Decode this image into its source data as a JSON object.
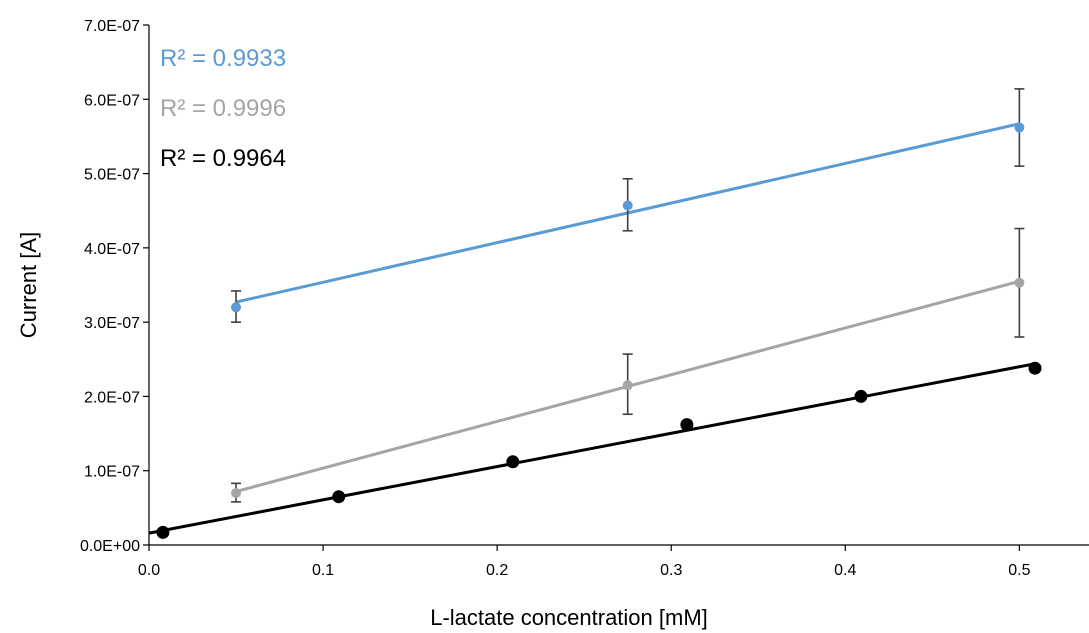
{
  "chart_data": {
    "type": "scatter",
    "xlabel": "L-lactate concentration [mM]",
    "ylabel": "Current [A]",
    "xlim": [
      0,
      0.54
    ],
    "ylim": [
      0,
      7e-07
    ],
    "x_ticks": [
      0,
      0.1,
      0.2,
      0.3,
      0.4,
      0.5
    ],
    "x_tick_labels": [
      "0.0",
      "0.1",
      "0.2",
      "0.3",
      "0.4",
      "0.5"
    ],
    "y_ticks": [
      0,
      1e-07,
      2e-07,
      3e-07,
      4e-07,
      5e-07,
      6e-07,
      7e-07
    ],
    "y_tick_labels": [
      "0.0E+00",
      "1.0E-07",
      "2.0E-07",
      "3.0E-07",
      "4.0E-07",
      "5.0E-07",
      "6.0E-07",
      "7.0E-07"
    ],
    "grid": false,
    "series": [
      {
        "color": "#5B9BD5",
        "r2_label": "R² = 0.9933",
        "marker_size": "small",
        "x": [
          0.05,
          0.275,
          0.5
        ],
        "y": [
          3.2e-07,
          4.57e-07,
          5.62e-07
        ],
        "error_low": [
          3e-07,
          4.23e-07,
          5.1e-07
        ],
        "error_high": [
          3.42e-07,
          4.93e-07,
          6.14e-07
        ],
        "trendline": [
          [
            0.05,
            3.27e-07
          ],
          [
            0.5,
            5.67e-07
          ]
        ]
      },
      {
        "color": "#A5A5A5",
        "r2_label": "R² = 0.9996",
        "marker_size": "small",
        "x": [
          0.05,
          0.275,
          0.5
        ],
        "y": [
          7e-08,
          2.15e-07,
          3.53e-07
        ],
        "error_low": [
          5.8e-08,
          1.76e-07,
          2.8e-07
        ],
        "error_high": [
          8.3e-08,
          2.57e-07,
          4.26e-07
        ],
        "trendline": [
          [
            0.05,
            7.2e-08
          ],
          [
            0.5,
            3.55e-07
          ]
        ]
      },
      {
        "color": "#000000",
        "r2_label": "R² = 0.9964",
        "marker_size": "large",
        "x": [
          0.008,
          0.109,
          0.209,
          0.309,
          0.409,
          0.509
        ],
        "y": [
          1.7e-08,
          6.5e-08,
          1.12e-07,
          1.62e-07,
          2e-07,
          2.38e-07
        ],
        "trendline": [
          [
            0.0,
            1.6e-08
          ],
          [
            0.509,
            2.44e-07
          ]
        ]
      }
    ]
  }
}
